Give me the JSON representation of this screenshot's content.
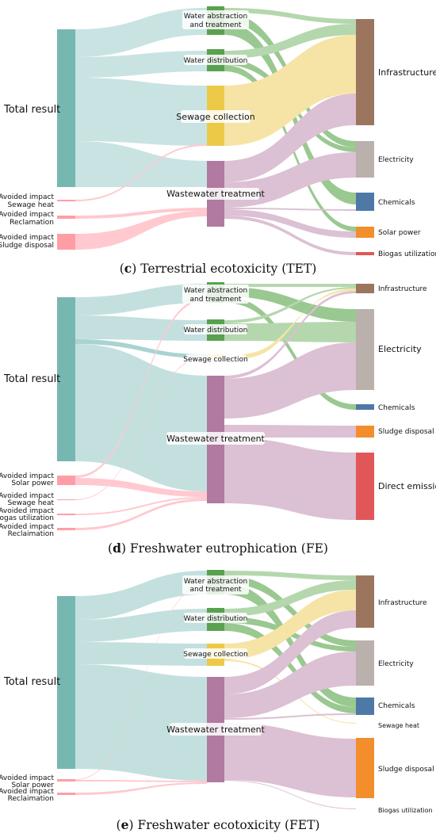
{
  "figures": [
    {
      "id": "c",
      "caption_letter": "c",
      "caption_text": "Terrestrial ecotoxicity (TET)",
      "source": {
        "label": "Total result"
      },
      "avoided": [
        {
          "line1": "Avoided impact",
          "line2": "Sewage heat"
        },
        {
          "line1": "Avoided impact",
          "line2": "Reclamation"
        },
        {
          "line1": "Avoided impact",
          "line2": "Sludge disposal"
        }
      ],
      "middle": [
        {
          "line1": "Water abstraction",
          "line2": "and treatment"
        },
        {
          "line1": "Water distribution",
          "line2": ""
        },
        {
          "line1": "Sewage collection",
          "line2": ""
        },
        {
          "line1": "Wastewater treatment",
          "line2": ""
        }
      ],
      "targets": [
        "Infrastructure",
        "Electricity",
        "Chemicals",
        "Solar power",
        "Biogas utilization"
      ]
    },
    {
      "id": "d",
      "caption_letter": "d",
      "caption_text": "Freshwater eutrophication (FE)",
      "source": {
        "label": "Total result"
      },
      "avoided": [
        {
          "line1": "Avoided impact",
          "line2": "Solar power"
        },
        {
          "line1": "Avoided impact",
          "line2": "Sewage heat"
        },
        {
          "line1": "Avoided impact",
          "line2": "Biogas utilization"
        },
        {
          "line1": "Avoided impact",
          "line2": "Reclaimation"
        }
      ],
      "middle": [
        {
          "line1": "Water abstraction",
          "line2": "and treatment"
        },
        {
          "line1": "Water distribution",
          "line2": ""
        },
        {
          "line1": "Sewage collection",
          "line2": ""
        },
        {
          "line1": "Wastewater treatment",
          "line2": ""
        }
      ],
      "targets": [
        "Infrastructure",
        "Electricity",
        "Chemicals",
        "Sludge disposal",
        "Direct emission"
      ]
    },
    {
      "id": "e",
      "caption_letter": "e",
      "caption_text": "Freshwater ecotoxicity (FET)",
      "source": {
        "label": "Total result"
      },
      "avoided": [
        {
          "line1": "Avoided impact",
          "line2": "Solar power"
        },
        {
          "line1": "Avoided impact",
          "line2": "Reclaimation"
        }
      ],
      "middle": [
        {
          "line1": "Water abstraction",
          "line2": "and treatment"
        },
        {
          "line1": "Water distribution",
          "line2": ""
        },
        {
          "line1": "Sewage collection",
          "line2": ""
        },
        {
          "line1": "Wastewater treatment",
          "line2": ""
        }
      ],
      "targets": [
        "Infrastructure",
        "Electricity",
        "Chemicals",
        "Sewage heat",
        "Sludge disposal",
        "Biogas utilization"
      ]
    }
  ],
  "colors": {
    "source": "#76b7b2",
    "source_flow": "#c3e0df",
    "avoided": "#ff9da7",
    "avoided_flow": "#ffc9cf",
    "water_abstraction": "#59a14f",
    "water_flow": "#b5d7ae",
    "sewage_collection": "#edc948",
    "sewage_flow": "#f6e4a6",
    "wastewater": "#b07aa1",
    "wastewater_flow": "#dcc0d3",
    "infrastructure": "#9c755f",
    "electricity": "#bab0ac",
    "chemicals": "#4e79a7",
    "orange": "#f28e2b",
    "red": "#e15759"
  }
}
